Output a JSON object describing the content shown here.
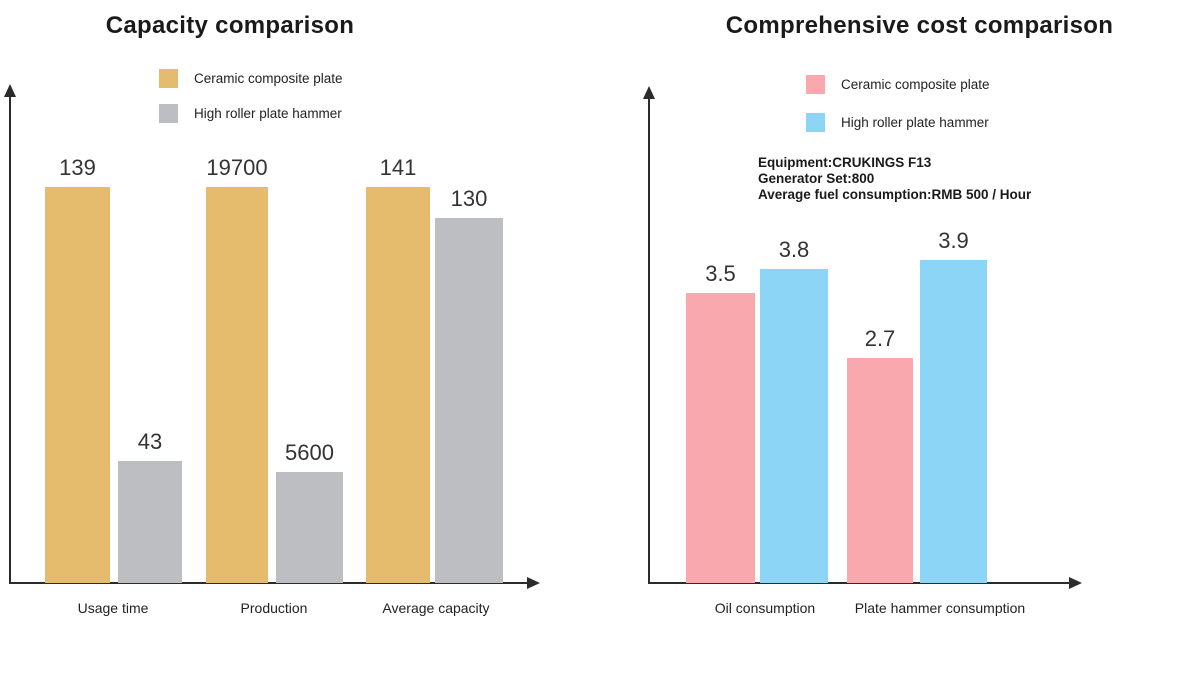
{
  "charts": {
    "left": {
      "title": "Capacity comparison",
      "legend": [
        {
          "label": "Ceramic composite plate",
          "color": "#e5bb6d"
        },
        {
          "label": "High roller plate hammer",
          "color": "#bdbec2"
        }
      ],
      "categories": [
        "Usage time",
        "Production",
        "Average capacity"
      ]
    },
    "right": {
      "title": "Comprehensive cost comparison",
      "legend": [
        {
          "label": "Ceramic composite plate",
          "color": "#f9a9ad"
        },
        {
          "label": "High roller plate hammer",
          "color": "#8dd5f6"
        }
      ],
      "annotation_lines": [
        "Equipment:CRUKINGS F13",
        "Generator Set:800",
        "Average fuel consumption:RMB 500 / Hour"
      ],
      "categories": [
        "Oil consumption",
        "Plate hammer consumption"
      ]
    }
  },
  "chart_data": [
    {
      "type": "bar",
      "title": "Capacity comparison",
      "categories": [
        "Usage time",
        "Production",
        "Average capacity"
      ],
      "series": [
        {
          "name": "Ceramic composite plate",
          "color": "#e5bb6d",
          "values": [
            139,
            19700,
            141
          ]
        },
        {
          "name": "High roller plate hammer",
          "color": "#bdbec2",
          "values": [
            43,
            5600,
            130
          ]
        }
      ],
      "value_labels": true,
      "legend_position": "top-center",
      "axes": {
        "style": "arrow",
        "ticks": false,
        "grid": false
      },
      "note": "bar heights are stylized; values labeled above each bar"
    },
    {
      "type": "bar",
      "title": "Comprehensive cost comparison",
      "categories": [
        "Oil consumption",
        "Plate hammer consumption"
      ],
      "series": [
        {
          "name": "Ceramic composite plate",
          "color": "#f9a9ad",
          "values": [
            3.5,
            2.7
          ]
        },
        {
          "name": "High roller plate hammer",
          "color": "#8dd5f6",
          "values": [
            3.8,
            3.9
          ]
        }
      ],
      "value_labels": true,
      "legend_position": "top-center",
      "axes": {
        "style": "arrow",
        "ticks": false,
        "grid": false
      },
      "ylim": [
        0,
        4.8
      ],
      "annotation": "Equipment:CRUKINGS F13\nGenerator Set:800\nAverage fuel consumption:RMB 500 / Hour"
    }
  ]
}
